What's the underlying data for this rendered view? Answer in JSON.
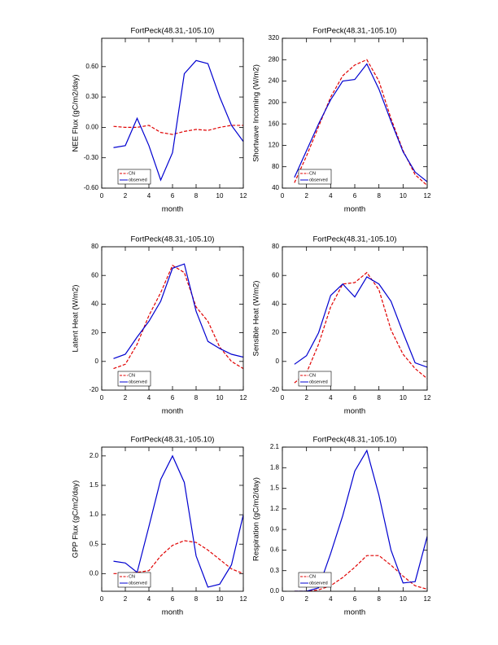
{
  "chart_data": [
    {
      "type": "line",
      "title": "FortPeck(48.31,-105.10)",
      "xlabel": "month",
      "ylabel": "NEE Flux (gC/m2/day)",
      "x": [
        1,
        2,
        3,
        4,
        5,
        6,
        7,
        8,
        9,
        10,
        11,
        12
      ],
      "xlim": [
        0,
        12
      ],
      "xticks": [
        0,
        2,
        4,
        6,
        8,
        10,
        12
      ],
      "ylim": [
        -0.6,
        0.88
      ],
      "yticks": [
        {
          "value": -0.6,
          "label": "-0.60"
        },
        {
          "value": -0.3,
          "label": "-0.30"
        },
        {
          "value": 0,
          "label": "0.00"
        },
        {
          "value": 0.3,
          "label": "0.30"
        },
        {
          "value": 0.6,
          "label": "0.60"
        }
      ],
      "legend": "lower left",
      "series": [
        {
          "name": "CN",
          "color": "#e00000",
          "dashed": true,
          "values": [
            0.01,
            0.0,
            0.0,
            0.02,
            -0.05,
            -0.07,
            -0.04,
            -0.02,
            -0.03,
            0.0,
            0.02,
            0.02
          ]
        },
        {
          "name": "observed",
          "color": "#0000d0",
          "dashed": false,
          "values": [
            -0.2,
            -0.18,
            0.09,
            -0.18,
            -0.52,
            -0.25,
            0.53,
            0.66,
            0.63,
            0.3,
            0.02,
            -0.14
          ]
        }
      ]
    },
    {
      "type": "line",
      "title": "FortPeck(48.31,-105.10)",
      "xlabel": "month",
      "ylabel": "Shortwave Incoming (W/m2)",
      "x": [
        1,
        2,
        3,
        4,
        5,
        6,
        7,
        8,
        9,
        10,
        11,
        12
      ],
      "xlim": [
        0,
        12
      ],
      "xticks": [
        0,
        2,
        4,
        6,
        8,
        10,
        12
      ],
      "ylim": [
        40,
        320
      ],
      "yticks": [
        40,
        80,
        120,
        160,
        200,
        240,
        280,
        320
      ],
      "legend": "lower left",
      "series": [
        {
          "name": "CN",
          "color": "#e00000",
          "dashed": true,
          "values": [
            50,
            100,
            155,
            210,
            250,
            270,
            280,
            240,
            170,
            110,
            65,
            45
          ]
        },
        {
          "name": "observed",
          "color": "#0000d0",
          "dashed": false,
          "values": [
            60,
            110,
            160,
            205,
            240,
            243,
            272,
            225,
            165,
            108,
            70,
            52
          ]
        }
      ]
    },
    {
      "type": "line",
      "title": "FortPeck(48.31,-105.10)",
      "xlabel": "month",
      "ylabel": "Latent Heat (W/m2)",
      "x": [
        1,
        2,
        3,
        4,
        5,
        6,
        7,
        8,
        9,
        10,
        11,
        12
      ],
      "xlim": [
        0,
        12
      ],
      "xticks": [
        0,
        2,
        4,
        6,
        8,
        10,
        12
      ],
      "ylim": [
        -20,
        80
      ],
      "yticks": [
        -20,
        0,
        20,
        40,
        60,
        80
      ],
      "legend": "lower left",
      "series": [
        {
          "name": "CN",
          "color": "#e00000",
          "dashed": true,
          "values": [
            -5,
            -2,
            12,
            32,
            48,
            67,
            62,
            38,
            28,
            10,
            0,
            -5
          ]
        },
        {
          "name": "observed",
          "color": "#0000d0",
          "dashed": false,
          "values": [
            2,
            5,
            17,
            28,
            42,
            65,
            68,
            35,
            14,
            9,
            5,
            3
          ]
        }
      ]
    },
    {
      "type": "line",
      "title": "FortPeck(48.31,-105.10)",
      "xlabel": "month",
      "ylabel": "Sensible Heat (W/m2)",
      "x": [
        1,
        2,
        3,
        4,
        5,
        6,
        7,
        8,
        9,
        10,
        11,
        12
      ],
      "xlim": [
        0,
        12
      ],
      "xticks": [
        0,
        2,
        4,
        6,
        8,
        10,
        12
      ],
      "ylim": [
        -20,
        80
      ],
      "yticks": [
        -20,
        0,
        20,
        40,
        60,
        80
      ],
      "legend": "lower left",
      "series": [
        {
          "name": "CN",
          "color": "#e00000",
          "dashed": true,
          "values": [
            -15,
            -8,
            12,
            38,
            54,
            55,
            62,
            50,
            22,
            5,
            -5,
            -12
          ]
        },
        {
          "name": "observed",
          "color": "#0000d0",
          "dashed": false,
          "values": [
            -2,
            4,
            20,
            46,
            54,
            45,
            59,
            54,
            42,
            20,
            -1,
            -4
          ]
        }
      ]
    },
    {
      "type": "line",
      "title": "FortPeck(48.31,-105.10)",
      "xlabel": "month",
      "ylabel": "GPP Flux (gC/m2/day)",
      "x": [
        1,
        2,
        3,
        4,
        5,
        6,
        7,
        8,
        9,
        10,
        11,
        12
      ],
      "xlim": [
        0,
        12
      ],
      "xticks": [
        0,
        2,
        4,
        6,
        8,
        10,
        12
      ],
      "ylim": [
        -0.3,
        2.15
      ],
      "yticks": [
        {
          "value": 0,
          "label": "0.0"
        },
        0.5,
        {
          "value": 1,
          "label": "1.0"
        },
        1.5,
        {
          "value": 2,
          "label": "2.0"
        }
      ],
      "legend": "lower left",
      "series": [
        {
          "name": "CN",
          "color": "#e00000",
          "dashed": true,
          "values": [
            0.0,
            0.0,
            0.02,
            0.05,
            0.3,
            0.48,
            0.56,
            0.53,
            0.4,
            0.24,
            0.08,
            0.0
          ]
        },
        {
          "name": "observed",
          "color": "#0000d0",
          "dashed": false,
          "values": [
            0.21,
            0.18,
            0.02,
            0.8,
            1.6,
            2.0,
            1.55,
            0.3,
            -0.23,
            -0.18,
            0.15,
            1.0
          ]
        }
      ]
    },
    {
      "type": "line",
      "title": "FortPeck(48.31,-105.10)",
      "xlabel": "month",
      "ylabel": "Respiration (gC/m2/day)",
      "x": [
        1,
        2,
        3,
        4,
        5,
        6,
        7,
        8,
        9,
        10,
        11,
        12
      ],
      "xlim": [
        0,
        12
      ],
      "xticks": [
        0,
        2,
        4,
        6,
        8,
        10,
        12
      ],
      "ylim": [
        0,
        2.1
      ],
      "yticks": [
        {
          "value": 0,
          "label": "0.0"
        },
        0.3,
        0.6,
        0.9,
        1.2,
        1.5,
        1.8,
        2.1
      ],
      "legend": "lower left",
      "series": [
        {
          "name": "CN",
          "color": "#e00000",
          "dashed": true,
          "values": [
            0.0,
            0.0,
            0.02,
            0.08,
            0.2,
            0.35,
            0.52,
            0.52,
            0.38,
            0.22,
            0.08,
            0.03
          ]
        },
        {
          "name": "observed",
          "color": "#0000d0",
          "dashed": false,
          "values": [
            0.0,
            0.0,
            0.05,
            0.55,
            1.1,
            1.75,
            2.05,
            1.4,
            0.6,
            0.12,
            0.14,
            0.8
          ]
        }
      ]
    }
  ]
}
